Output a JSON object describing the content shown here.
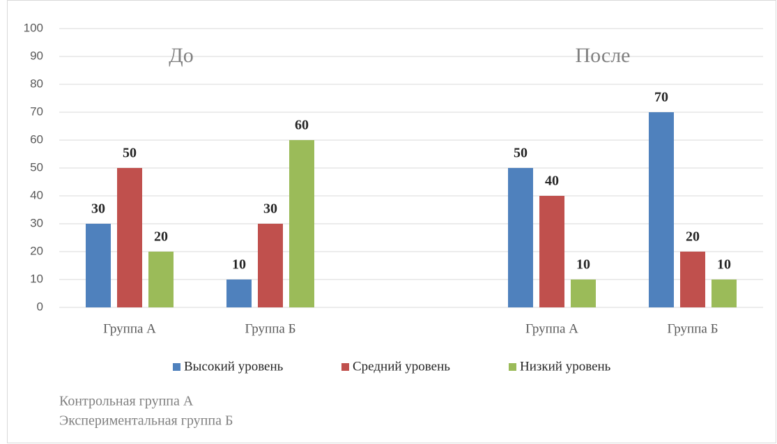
{
  "chart_data": {
    "type": "bar",
    "categories": [
      "Группа А",
      "Группа Б",
      null,
      "Группа А",
      "Группа Б"
    ],
    "series": [
      {
        "name": "Высокий уровень",
        "color": "#4f81bd",
        "values": [
          30,
          10,
          null,
          50,
          70
        ]
      },
      {
        "name": "Средний уровень",
        "color": "#c0504d",
        "values": [
          50,
          30,
          null,
          40,
          20
        ]
      },
      {
        "name": "Низкий уровень",
        "color": "#9bbb59",
        "values": [
          20,
          60,
          null,
          10,
          10
        ]
      }
    ],
    "annotations": [
      "До",
      "После"
    ],
    "notes": [
      "Контрольная группа А",
      "Экспериментальная группа Б"
    ],
    "ylim": [
      0,
      100
    ],
    "yticks": [
      0,
      10,
      20,
      30,
      40,
      50,
      60,
      70,
      80,
      90,
      100
    ],
    "grid": true,
    "legend": "bottom"
  }
}
